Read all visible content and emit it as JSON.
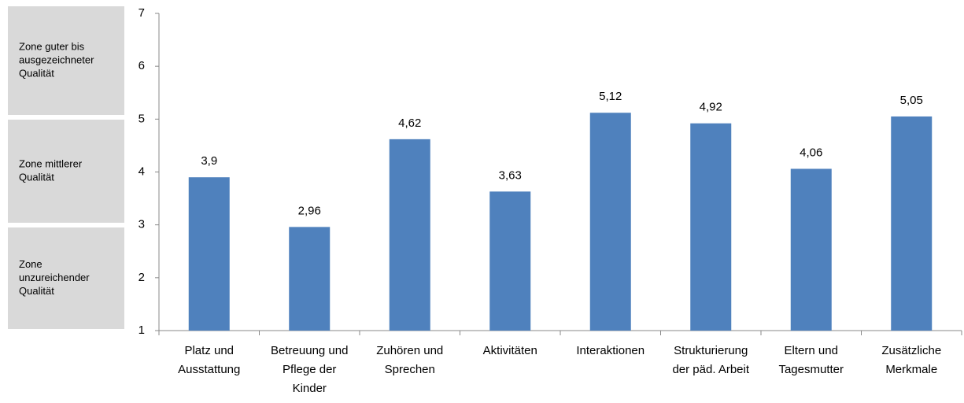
{
  "chart_data": {
    "type": "bar",
    "categories": [
      [
        "Platz und",
        "Ausstattung"
      ],
      [
        "Betreuung und",
        "Pflege der",
        "Kinder"
      ],
      [
        "Zuhören und",
        "Sprechen"
      ],
      [
        "Aktivitäten"
      ],
      [
        "Interaktionen"
      ],
      [
        "Strukturierung",
        "der päd. Arbeit"
      ],
      [
        "Eltern und",
        "Tagesmutter"
      ],
      [
        "Zusätzliche",
        "Merkmale"
      ]
    ],
    "values": [
      3.9,
      2.96,
      4.62,
      3.63,
      5.12,
      4.92,
      4.06,
      5.05
    ],
    "value_labels": [
      "3,9",
      "2,96",
      "4,62",
      "3,63",
      "5,12",
      "4,92",
      "4,06",
      "5,05"
    ],
    "color": "#4f81bd",
    "ylim": [
      1,
      7
    ],
    "yticks": [
      1,
      2,
      3,
      4,
      5,
      6,
      7
    ],
    "grid": false,
    "annotations": [
      [
        "Zone guter bis",
        "ausgezeichneter",
        "Qualität"
      ],
      [
        "Zone mittlerer",
        "Qualität"
      ],
      [
        "Zone",
        "unzureichender",
        "Qualität"
      ]
    ]
  }
}
